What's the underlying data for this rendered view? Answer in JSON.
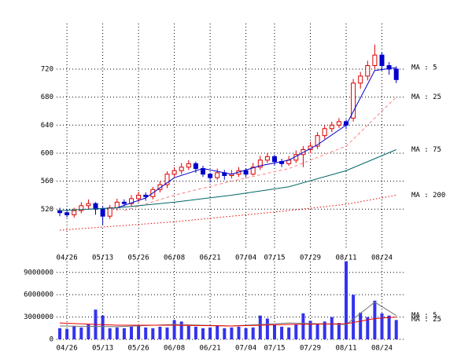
{
  "chart_data": [
    {
      "type": "candlestick",
      "categories": [
        null,
        "04/26",
        null,
        null,
        null,
        null,
        "05/13",
        null,
        null,
        null,
        null,
        "05/26",
        null,
        null,
        null,
        null,
        "06/08",
        null,
        null,
        null,
        null,
        "06/21",
        null,
        null,
        null,
        null,
        "07/04",
        null,
        null,
        null,
        "07/15",
        null,
        null,
        null,
        null,
        "07/29",
        null,
        null,
        null,
        null,
        "08/11",
        null,
        null,
        null,
        null,
        "08/24",
        null,
        null
      ],
      "ohlc": [
        [
          518,
          522,
          510,
          515
        ],
        [
          515,
          520,
          508,
          512
        ],
        [
          512,
          522,
          508,
          518
        ],
        [
          518,
          530,
          514,
          525
        ],
        [
          525,
          534,
          520,
          528
        ],
        [
          528,
          530,
          512,
          520
        ],
        [
          520,
          524,
          498,
          510
        ],
        [
          510,
          526,
          506,
          522
        ],
        [
          522,
          535,
          518,
          530
        ],
        [
          530,
          534,
          524,
          528
        ],
        [
          528,
          540,
          524,
          535
        ],
        [
          535,
          545,
          530,
          540
        ],
        [
          540,
          544,
          532,
          538
        ],
        [
          538,
          552,
          534,
          548
        ],
        [
          548,
          560,
          544,
          555
        ],
        [
          555,
          574,
          550,
          570
        ],
        [
          570,
          580,
          566,
          575
        ],
        [
          575,
          586,
          570,
          580
        ],
        [
          580,
          590,
          576,
          585
        ],
        [
          585,
          588,
          572,
          578
        ],
        [
          578,
          582,
          566,
          570
        ],
        [
          570,
          572,
          558,
          565
        ],
        [
          565,
          578,
          562,
          572
        ],
        [
          572,
          576,
          562,
          568
        ],
        [
          568,
          576,
          564,
          570
        ],
        [
          570,
          580,
          566,
          575
        ],
        [
          575,
          578,
          566,
          570
        ],
        [
          570,
          586,
          568,
          580
        ],
        [
          580,
          596,
          576,
          590
        ],
        [
          590,
          600,
          586,
          595
        ],
        [
          595,
          598,
          582,
          588
        ],
        [
          588,
          592,
          580,
          585
        ],
        [
          585,
          596,
          582,
          590
        ],
        [
          590,
          604,
          586,
          598
        ],
        [
          598,
          610,
          580,
          605
        ],
        [
          605,
          616,
          600,
          610
        ],
        [
          610,
          630,
          606,
          625
        ],
        [
          625,
          640,
          620,
          635
        ],
        [
          635,
          645,
          630,
          640
        ],
        [
          640,
          650,
          636,
          645
        ],
        [
          645,
          648,
          634,
          640
        ],
        [
          650,
          706,
          645,
          700
        ],
        [
          700,
          716,
          692,
          710
        ],
        [
          710,
          732,
          704,
          725
        ],
        [
          725,
          755,
          720,
          740
        ],
        [
          740,
          744,
          718,
          725
        ],
        [
          725,
          730,
          712,
          720
        ],
        [
          720,
          724,
          700,
          705
        ]
      ],
      "up_color": "#dd0000",
      "down_color": "#0000cc",
      "lines": [
        {
          "name": "MA : 5",
          "color": "#0000cc",
          "dash": "solid",
          "x": [
            4,
            8,
            12,
            16,
            20,
            24,
            28,
            32,
            36,
            40,
            44,
            47
          ],
          "values": [
            520,
            522,
            536,
            565,
            578,
            570,
            582,
            590,
            612,
            640,
            718,
            722
          ]
        },
        {
          "name": "MA : 25",
          "color": "#ff8080",
          "dash": "dashed",
          "x": [
            9,
            16,
            24,
            32,
            40,
            47
          ],
          "values": [
            518,
            540,
            560,
            578,
            610,
            680
          ]
        },
        {
          "name": "MA : 75",
          "color": "#006666",
          "dash": "solid",
          "x": [
            0,
            8,
            16,
            24,
            32,
            40,
            47
          ],
          "values": [
            518,
            522,
            530,
            540,
            552,
            575,
            605
          ]
        },
        {
          "name": "MA : 200",
          "color": "#ee0000",
          "dash": "dotted",
          "x": [
            0,
            8,
            16,
            24,
            32,
            40,
            47
          ],
          "values": [
            490,
            496,
            502,
            510,
            518,
            527,
            540
          ]
        }
      ],
      "ylim": [
        462,
        785
      ],
      "yticks": [
        520,
        560,
        600,
        640,
        680,
        720
      ],
      "grid": true
    },
    {
      "type": "bar",
      "categories": [
        null,
        "04/26",
        null,
        null,
        null,
        null,
        "05/13",
        null,
        null,
        null,
        null,
        "05/26",
        null,
        null,
        null,
        null,
        "06/08",
        null,
        null,
        null,
        null,
        "06/21",
        null,
        null,
        null,
        null,
        "07/04",
        null,
        null,
        null,
        "07/15",
        null,
        null,
        null,
        null,
        "07/29",
        null,
        null,
        null,
        null,
        "08/11",
        null,
        null,
        null,
        null,
        "08/24",
        null,
        null
      ],
      "values": [
        1500000,
        1400000,
        1800000,
        1600000,
        2000000,
        4000000,
        3200000,
        1500000,
        1600000,
        1500000,
        1700000,
        1800000,
        1600000,
        1500000,
        1700000,
        1600000,
        2600000,
        2400000,
        1800000,
        1700000,
        1500000,
        1600000,
        1800000,
        1500000,
        1600000,
        1700000,
        1500000,
        1600000,
        3200000,
        2800000,
        2000000,
        1700000,
        1600000,
        2000000,
        3500000,
        2500000,
        2000000,
        2400000,
        3000000,
        2200000,
        10500000,
        6000000,
        3600000,
        3000000,
        5200000,
        3500000,
        3200000,
        2600000
      ],
      "color": "#3333ee",
      "lines": [
        {
          "name": "MA : 5",
          "color": "#777777",
          "dash": "solid",
          "x": [
            0,
            8,
            16,
            24,
            32,
            40,
            44,
            47
          ],
          "values": [
            1800000,
            1700000,
            2000000,
            1800000,
            2200000,
            2000000,
            5000000,
            3200000
          ]
        },
        {
          "name": "MA : 25",
          "color": "#ee0000",
          "dash": "solid",
          "x": [
            0,
            8,
            16,
            24,
            32,
            40,
            44,
            47
          ],
          "values": [
            2200000,
            1900000,
            1900000,
            1800000,
            2000000,
            2100000,
            2800000,
            3000000
          ]
        }
      ],
      "ylim": [
        0,
        11300000
      ],
      "yticks": [
        0,
        3000000,
        6000000,
        9000000
      ],
      "grid": true
    }
  ]
}
